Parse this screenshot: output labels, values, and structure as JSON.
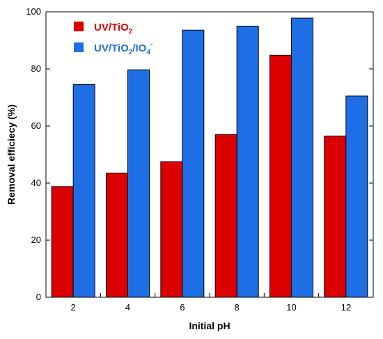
{
  "chart_data": {
    "type": "bar",
    "categories": [
      "2",
      "4",
      "6",
      "8",
      "10",
      "12"
    ],
    "series": [
      {
        "name": "UV/TiO2",
        "legend_main": "UV/TiO",
        "legend_sub": "2",
        "color": "#dd0000",
        "values": [
          38.8,
          43.5,
          47.5,
          57.0,
          84.8,
          56.5
        ]
      },
      {
        "name": "UV/TiO2/IO4-",
        "legend_main": "UV/TiO",
        "legend_sub": "2",
        "legend_mid": "/IO",
        "legend_sub2": "4",
        "legend_sup": "-",
        "color": "#1e6fe6",
        "values": [
          74.5,
          79.7,
          93.6,
          95.0,
          97.8,
          70.5
        ]
      }
    ],
    "xlabel": "Initial pH",
    "ylabel": "Removal efficiecy (%)",
    "ylim": [
      0,
      100
    ],
    "yticks": [
      0,
      20,
      40,
      60,
      80,
      100
    ],
    "grid": false,
    "legend_position": "top-left"
  }
}
